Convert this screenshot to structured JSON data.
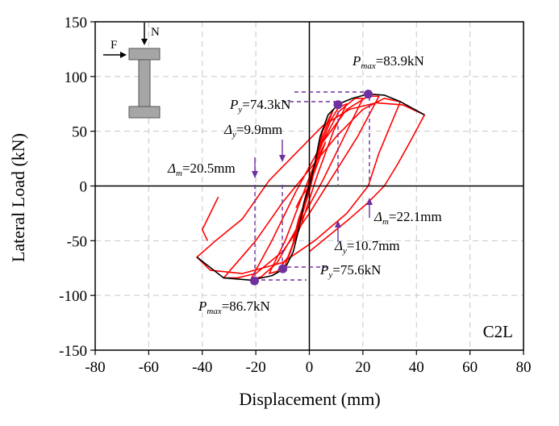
{
  "chart_data": {
    "type": "line",
    "xlabel": "Displacement (mm)",
    "ylabel": "Lateral Load (kN)",
    "xlim": [
      -80,
      80
    ],
    "ylim": [
      -150,
      150
    ],
    "xticks": [
      -80,
      -60,
      -40,
      -20,
      0,
      20,
      40,
      60,
      80
    ],
    "yticks": [
      150,
      100,
      50,
      0,
      -50,
      -100,
      -150
    ],
    "xtick_labels": [
      "-80",
      "-60",
      "-40",
      "-20",
      "0",
      "20",
      "40",
      "60",
      "80"
    ],
    "ytick_labels": [
      "150",
      "100",
      "50",
      "0",
      "-50",
      "-100",
      "-150"
    ],
    "grid": true,
    "panel_label": "C2L",
    "colors": {
      "hysteresis": "#ff0000",
      "skeleton": "#000000",
      "marker": "#7030a0",
      "grid": "#c8c8c8",
      "section": "#a6a6a6"
    },
    "series": [
      {
        "role": "hysteresis",
        "loops": [
          [
            [
              -5,
              -20
            ],
            [
              -3,
              -10
            ],
            [
              0,
              0
            ],
            [
              3,
              20
            ],
            [
              6,
              40
            ],
            [
              3,
              25
            ],
            [
              0,
              5
            ],
            [
              -3,
              -25
            ],
            [
              -6,
              -50
            ],
            [
              -4,
              -30
            ],
            [
              -1,
              -10
            ]
          ],
          [
            [
              -1,
              -10
            ],
            [
              2,
              20
            ],
            [
              5,
              50
            ],
            [
              9,
              70
            ],
            [
              5,
              45
            ],
            [
              1,
              10
            ],
            [
              -3,
              -30
            ],
            [
              -7,
              -60
            ],
            [
              -9,
              -72
            ],
            [
              -5,
              -45
            ],
            [
              0,
              -5
            ]
          ],
          [
            [
              0,
              -5
            ],
            [
              4,
              35
            ],
            [
              8,
              60
            ],
            [
              11,
              72
            ],
            [
              14,
              75
            ],
            [
              9,
              50
            ],
            [
              3,
              10
            ],
            [
              -3,
              -35
            ],
            [
              -8,
              -65
            ],
            [
              -12,
              -78
            ],
            [
              -15,
              -80
            ],
            [
              -9,
              -50
            ],
            [
              -2,
              -5
            ]
          ],
          [
            [
              -2,
              -5
            ],
            [
              5,
              40
            ],
            [
              11,
              68
            ],
            [
              17,
              80
            ],
            [
              20,
              80
            ],
            [
              13,
              45
            ],
            [
              5,
              5
            ],
            [
              -5,
              -40
            ],
            [
              -12,
              -70
            ],
            [
              -18,
              -83
            ],
            [
              -22,
              -86
            ],
            [
              -14,
              -50
            ],
            [
              -5,
              -5
            ]
          ],
          [
            [
              -5,
              -5
            ],
            [
              5,
              40
            ],
            [
              14,
              70
            ],
            [
              22,
              82
            ],
            [
              26,
              82
            ],
            [
              18,
              45
            ],
            [
              9,
              10
            ],
            [
              0,
              -25
            ],
            [
              -10,
              -60
            ],
            [
              -20,
              -80
            ],
            [
              -27,
              -84
            ],
            [
              -32,
              -84
            ],
            [
              -20,
              -50
            ],
            [
              -10,
              -15
            ],
            [
              0,
              15
            ],
            [
              10,
              45
            ],
            [
              20,
              70
            ],
            [
              28,
              80
            ],
            [
              34,
              77
            ],
            [
              26,
              30
            ],
            [
              22,
              0
            ],
            [
              14,
              -25
            ],
            [
              2,
              -50
            ],
            [
              -10,
              -70
            ],
            [
              -25,
              -80
            ],
            [
              -37,
              -77
            ],
            [
              -42,
              -65
            ],
            [
              -35,
              -50
            ],
            [
              -25,
              -30
            ],
            [
              -15,
              5
            ],
            [
              -5,
              30
            ],
            [
              5,
              55
            ],
            [
              15,
              70
            ],
            [
              25,
              76
            ],
            [
              35,
              74
            ],
            [
              43,
              65
            ],
            [
              38,
              42
            ],
            [
              33,
              20
            ],
            [
              28,
              0
            ],
            [
              22,
              -15
            ],
            [
              15,
              -30
            ],
            [
              6,
              -48
            ],
            [
              0,
              -60
            ]
          ],
          [
            [
              -38,
              -50
            ],
            [
              -40,
              -40
            ],
            [
              -34,
              -10
            ]
          ]
        ]
      },
      {
        "role": "skeleton",
        "points": [
          [
            -42,
            -65
          ],
          [
            -32,
            -84
          ],
          [
            -22,
            -86
          ],
          [
            -14,
            -82
          ],
          [
            -9,
            -75
          ],
          [
            -6,
            -60
          ],
          [
            -4,
            -40
          ],
          [
            -2,
            -15
          ],
          [
            0,
            0
          ],
          [
            2,
            20
          ],
          [
            4,
            45
          ],
          [
            7,
            65
          ],
          [
            11,
            75
          ],
          [
            16,
            80
          ],
          [
            22,
            84
          ],
          [
            28,
            83
          ],
          [
            34,
            77
          ],
          [
            43,
            65
          ]
        ]
      }
    ],
    "key_points": [
      {
        "x": 22,
        "y": 83.9
      },
      {
        "x": 10.7,
        "y": 74.3
      },
      {
        "x": -9.9,
        "y": -75.6
      },
      {
        "x": -20.5,
        "y": -86.7
      }
    ],
    "annotations": [
      {
        "main": "P",
        "sub": "max",
        "rest": "=83.9kN"
      },
      {
        "main": "P",
        "sub": "y",
        "rest": "=74.3kN"
      },
      {
        "main": "Δ",
        "sub": "y",
        "rest": "=9.9mm"
      },
      {
        "main": "Δ",
        "sub": "m",
        "rest": "=20.5mm"
      },
      {
        "main": "Δ",
        "sub": "m",
        "rest": "=22.1mm"
      },
      {
        "main": "Δ",
        "sub": "y",
        "rest": "=10.7mm"
      },
      {
        "main": "P",
        "sub": "y",
        "rest": "=75.6kN"
      },
      {
        "main": "P",
        "sub": "max",
        "rest": "=86.7kN"
      }
    ],
    "inset_labels": {
      "force": "F",
      "axial": "N"
    }
  }
}
